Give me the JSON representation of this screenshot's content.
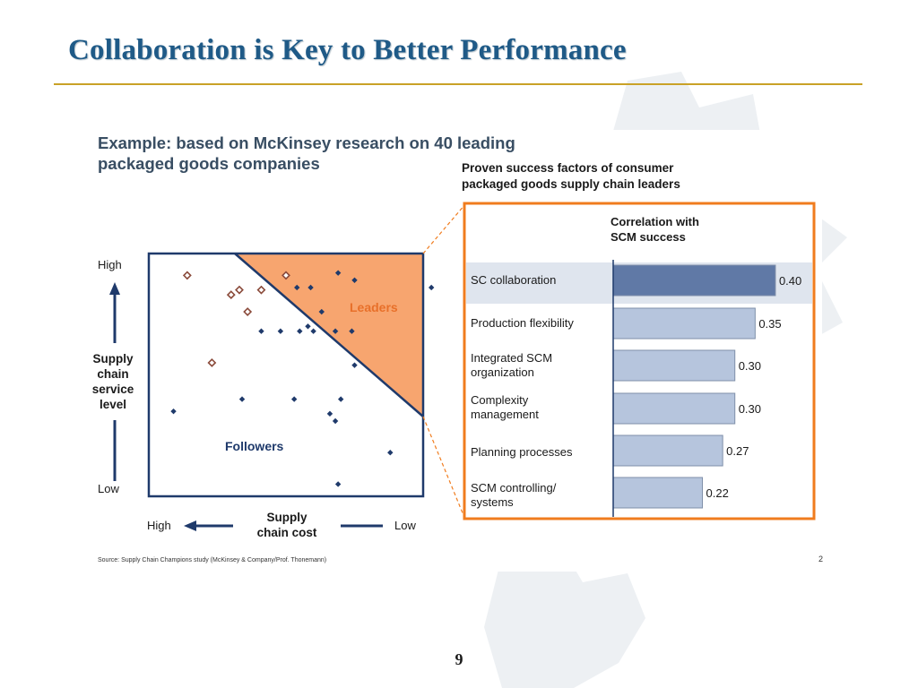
{
  "slide": {
    "title": "Collaboration is Key to Better Performance",
    "page_number": "9"
  },
  "panel": {
    "heading_lines": [
      "Example: based on McKinsey research on 40 leading",
      "packaged goods companies"
    ],
    "subheading_lines": [
      "Proven success factors of consumer",
      "packaged goods supply chain leaders"
    ],
    "source": "Source: Supply Chain Champions study (McKinsey & Company/Prof. Thonemann)",
    "page_mark": "2"
  },
  "colors": {
    "title": "#1f5a87",
    "rule": "#c9a227",
    "leaders_fill": "#f7a56f",
    "orange_border": "#f07c1e",
    "navy": "#1f3a6b",
    "bar_highlight": "#6079a6",
    "bar_normal": "#b6c5dd"
  },
  "chart_data": [
    {
      "type": "scatter",
      "title": "",
      "y_axis": {
        "lines": [
          "Supply",
          "chain",
          "service",
          "level"
        ],
        "high_label": "High",
        "low_label": "Low",
        "range": [
          0,
          10
        ]
      },
      "x_axis": {
        "lines": [
          "Supply",
          "chain cost"
        ],
        "high_label": "High",
        "low_label": "Low",
        "range": [
          0,
          10
        ],
        "reversed": true
      },
      "regions": [
        {
          "name": "Leaders",
          "color": "#e8702a"
        },
        {
          "name": "Followers",
          "color": "#1f3a6b"
        }
      ],
      "series": [
        {
          "name": "Leaders",
          "points": [
            {
              "x": 5.0,
              "y": 9.1
            },
            {
              "x": 1.4,
              "y": 9.1
            },
            {
              "x": 4.1,
              "y": 8.5
            },
            {
              "x": 3.3,
              "y": 8.5
            },
            {
              "x": 3.0,
              "y": 8.3
            },
            {
              "x": 3.6,
              "y": 7.6
            },
            {
              "x": 2.3,
              "y": 5.5
            }
          ]
        },
        {
          "name": "Followers",
          "points": [
            {
              "x": 10.3,
              "y": 8.6
            },
            {
              "x": 7.5,
              "y": 8.9
            },
            {
              "x": 6.9,
              "y": 9.2
            },
            {
              "x": 5.9,
              "y": 8.6
            },
            {
              "x": 5.4,
              "y": 8.6
            },
            {
              "x": 6.3,
              "y": 7.6
            },
            {
              "x": 5.8,
              "y": 7.0
            },
            {
              "x": 5.5,
              "y": 6.8
            },
            {
              "x": 6.8,
              "y": 6.8
            },
            {
              "x": 6.0,
              "y": 6.8
            },
            {
              "x": 4.8,
              "y": 6.8
            },
            {
              "x": 4.1,
              "y": 6.8
            },
            {
              "x": 7.4,
              "y": 6.8
            },
            {
              "x": 7.5,
              "y": 5.4
            },
            {
              "x": 5.3,
              "y": 4.0
            },
            {
              "x": 7.0,
              "y": 4.0
            },
            {
              "x": 3.4,
              "y": 4.0
            },
            {
              "x": 6.6,
              "y": 3.4
            },
            {
              "x": 6.8,
              "y": 3.1
            },
            {
              "x": 0.9,
              "y": 3.5
            },
            {
              "x": 8.8,
              "y": 1.8
            },
            {
              "x": 6.9,
              "y": 0.5
            }
          ]
        }
      ]
    },
    {
      "type": "bar",
      "orientation": "horizontal",
      "title": "",
      "value_header_lines": [
        "Correlation with",
        "SCM success"
      ],
      "categories": [
        [
          "SC collaboration"
        ],
        [
          "Production flexibility"
        ],
        [
          "Integrated SCM",
          "organization"
        ],
        [
          "Complexity",
          "management"
        ],
        [
          "Planning processes"
        ],
        [
          "SCM controlling/",
          "systems"
        ]
      ],
      "values": [
        0.4,
        0.35,
        0.3,
        0.3,
        0.27,
        0.22
      ],
      "highlight_index": 0,
      "xlim": [
        0,
        0.42
      ]
    }
  ]
}
